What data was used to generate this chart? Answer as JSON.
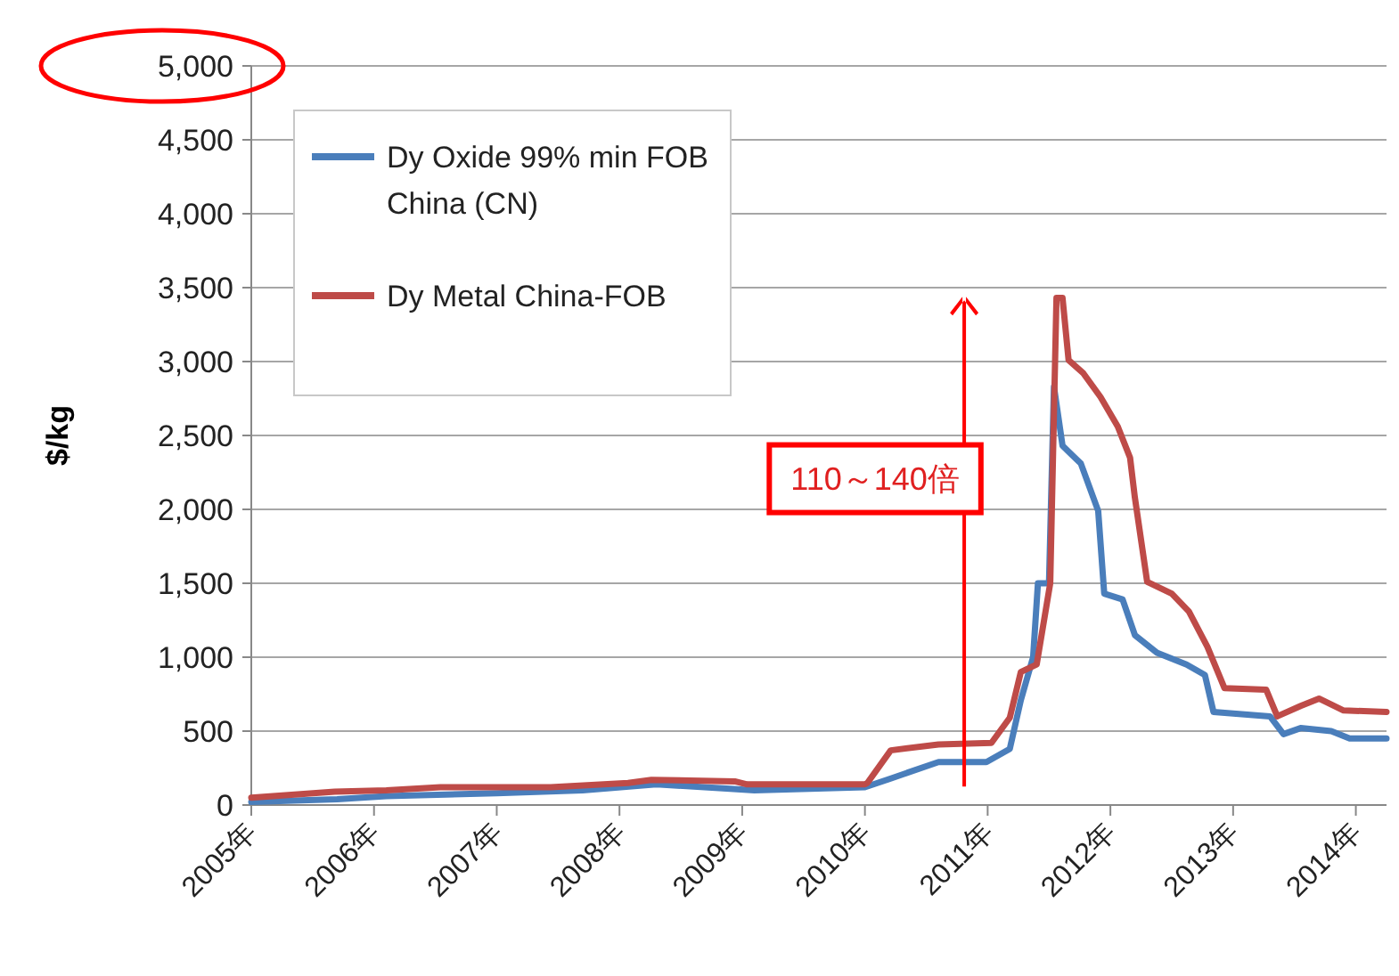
{
  "chart_data": {
    "type": "line",
    "ylabel": "$/kg",
    "legend": "top left",
    "grid": "y",
    "xlim": [
      2005,
      2014.25
    ],
    "xticks": [
      {
        "value": 2005,
        "label": "2005年"
      },
      {
        "value": 2006,
        "label": "2006年"
      },
      {
        "value": 2007,
        "label": "2007年"
      },
      {
        "value": 2008,
        "label": "2008年"
      },
      {
        "value": 2009,
        "label": "2009年"
      },
      {
        "value": 2010,
        "label": "2010年"
      },
      {
        "value": 2011,
        "label": "2011年"
      },
      {
        "value": 2012,
        "label": "2012年"
      },
      {
        "value": 2013,
        "label": "2013年"
      },
      {
        "value": 2014,
        "label": "2014年"
      }
    ],
    "ylim": [
      0,
      5000
    ],
    "yticks": [
      {
        "value": 0,
        "label": "0"
      },
      {
        "value": 500,
        "label": "500"
      },
      {
        "value": 1000,
        "label": "1,000"
      },
      {
        "value": 1500,
        "label": "1,500"
      },
      {
        "value": 2000,
        "label": "2,000"
      },
      {
        "value": 2500,
        "label": "2,500"
      },
      {
        "value": 3000,
        "label": "3,000"
      },
      {
        "value": 3500,
        "label": "3,500"
      },
      {
        "value": 4000,
        "label": "4,000"
      },
      {
        "value": 4500,
        "label": "4,500"
      },
      {
        "value": 5000,
        "label": "5,000"
      }
    ],
    "annotations": [
      "110～140倍"
    ],
    "series": [
      {
        "name": "Dy Oxide 99% min FOB China (CN)",
        "color": "#4a7ebb",
        "x": [
          2005,
          2005.7,
          2006.1,
          2007,
          2007.7,
          2008.3,
          2008.9,
          2009.1,
          2010,
          2010.21,
          2010.6,
          2010.99,
          2011.18,
          2011.27,
          2011.37,
          2011.41,
          2011.5,
          2011.54,
          2011.61,
          2011.76,
          2011.9,
          2011.95,
          2012.1,
          2012.2,
          2012.38,
          2012.62,
          2012.77,
          2012.84,
          2013.3,
          2013.41,
          2013.55,
          2013.8,
          2013.95,
          2014.25
        ],
        "values": [
          20,
          40,
          60,
          80,
          100,
          140,
          110,
          100,
          120,
          180,
          290,
          290,
          380,
          710,
          1000,
          1500,
          1500,
          2830,
          2430,
          2310,
          1990,
          1430,
          1390,
          1150,
          1030,
          950,
          880,
          630,
          600,
          480,
          520,
          500,
          450,
          450
        ]
      },
      {
        "name": "Dy Metal China-FOB",
        "color": "#be4b48",
        "x": [
          2005,
          2005.68,
          2006.1,
          2006.54,
          2007.44,
          2008.07,
          2008.26,
          2008.94,
          2009.04,
          2010,
          2010.02,
          2010.21,
          2010.6,
          2011.03,
          2011.18,
          2011.27,
          2011.4,
          2011.51,
          2011.56,
          2011.61,
          2011.66,
          2011.78,
          2011.92,
          2012.06,
          2012.16,
          2012.2,
          2012.3,
          2012.5,
          2012.64,
          2012.79,
          2012.93,
          2013.27,
          2013.36,
          2013.55,
          2013.7,
          2013.9,
          2014.25
        ],
        "values": [
          50,
          90,
          100,
          120,
          120,
          150,
          170,
          160,
          140,
          140,
          150,
          370,
          410,
          420,
          590,
          900,
          950,
          1500,
          3430,
          3430,
          3010,
          2920,
          2760,
          2560,
          2350,
          2080,
          1510,
          1430,
          1310,
          1070,
          790,
          780,
          600,
          670,
          720,
          640,
          630
        ]
      }
    ]
  }
}
